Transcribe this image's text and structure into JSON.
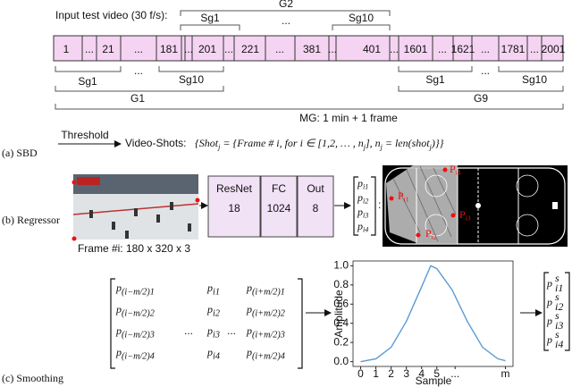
{
  "sbd": {
    "label": "(a) SBD",
    "input_label": "Input test video (30 f/s):",
    "frames": [
      "1",
      "...",
      "21",
      "...",
      "181",
      "...",
      "201",
      "...",
      "221",
      "...",
      "381",
      "...",
      "401",
      "...",
      "1601",
      "...",
      "1621",
      "...",
      "1781",
      "...",
      "2001"
    ],
    "top": {
      "g": "G2",
      "sg_first": "Sg1",
      "ellipsis": "...",
      "sg_last": "Sg10"
    },
    "bottom_left": {
      "g": "G1",
      "sg_first": "Sg1",
      "ellipsis": "...",
      "sg_last": "Sg10"
    },
    "bottom_right": {
      "g": "G9",
      "sg_first": "Sg1",
      "ellipsis": "...",
      "sg_last": "Sg10"
    },
    "mg": "MG: 1 min + 1 frame",
    "threshold": "Threshold",
    "video_shots": "Video-Shots:",
    "formula": [
      "{Shot",
      "j",
      " = {Frame # i, for i ∈ [1,2, … , n",
      "j",
      "], n",
      "j",
      " = len(shot",
      "j",
      ")}}"
    ]
  },
  "regressor": {
    "label": "(b) Regressor",
    "frame_caption": "Frame #i: 180 x 320 x 3",
    "layers": [
      {
        "name": "ResNet",
        "size": "18"
      },
      {
        "name": "FC",
        "size": "1024"
      },
      {
        "name": "Out",
        "size": "8"
      }
    ],
    "vector": [
      {
        "base": "p",
        "sub": "i1"
      },
      {
        "base": "p",
        "sub": "i2"
      },
      {
        "base": "p",
        "sub": "i3"
      },
      {
        "base": "p",
        "sub": "i4"
      }
    ],
    "separator": ":",
    "points": [
      {
        "base": "P",
        "sub": "i1"
      },
      {
        "base": "P",
        "sub": "i2"
      },
      {
        "base": "P",
        "sub": "i3"
      },
      {
        "base": "P",
        "sub": "i4"
      }
    ]
  },
  "smoothing": {
    "label": "(c) Smoothing",
    "matrix": {
      "left": [
        {
          "base": "p",
          "sub": "(i−m/2)1"
        },
        {
          "base": "p",
          "sub": "(i−m/2)2"
        },
        {
          "base": "p",
          "sub": "(i−m/2)3"
        },
        {
          "base": "p",
          "sub": "(i−m/2)4"
        }
      ],
      "ellipsis_left": "...",
      "center": [
        {
          "base": "p",
          "sub": "i1"
        },
        {
          "base": "p",
          "sub": "i2"
        },
        {
          "base": "p",
          "sub": "i3"
        },
        {
          "base": "p",
          "sub": "i4"
        }
      ],
      "ellipsis_right": "...",
      "right": [
        {
          "base": "p",
          "sub": "(i+m/2)1"
        },
        {
          "base": "p",
          "sub": "(i+m/2)2"
        },
        {
          "base": "p",
          "sub": "(i+m/2)3"
        },
        {
          "base": "p",
          "sub": "(i+m/2)4"
        }
      ]
    },
    "plot": {
      "type": "line",
      "xlabel": "Sample",
      "ylabel": "Amplitude",
      "color": "#5b9bd5",
      "x": [
        0,
        1,
        2,
        3,
        4,
        4.6,
        5,
        6,
        7,
        8,
        9,
        9.5
      ],
      "values": [
        0.0,
        0.03,
        0.15,
        0.42,
        0.78,
        1.0,
        0.97,
        0.75,
        0.42,
        0.15,
        0.03,
        0.01
      ],
      "xlim": [
        -0.5,
        10
      ],
      "ylim": [
        -0.05,
        1.05
      ],
      "xticks": [
        0,
        1,
        2,
        3,
        4,
        5,
        {
          "value": 6.2,
          "label": "..."
        },
        {
          "value": 9.5,
          "label": "m"
        }
      ],
      "yticks": [
        {
          "value": 0,
          "label": "0.0"
        },
        0.2,
        0.4,
        0.6,
        0.8,
        {
          "value": 1,
          "label": "1.0"
        }
      ]
    },
    "output": [
      {
        "base": "p",
        "sup": "s",
        "sub": "i1"
      },
      {
        "base": "p",
        "sup": "s",
        "sub": "i2"
      },
      {
        "base": "p",
        "sup": "s",
        "sub": "i3"
      },
      {
        "base": "p",
        "sup": "s",
        "sub": "i4"
      }
    ]
  }
}
